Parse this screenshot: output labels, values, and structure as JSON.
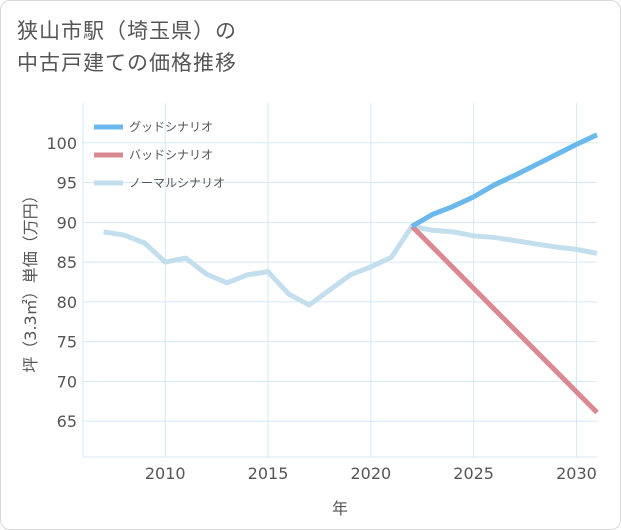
{
  "title_lines": [
    "狭山市駅（埼玉県）の",
    "中古戸建ての価格推移"
  ],
  "colors": {
    "good": "#6ab8ec",
    "bad": "#db8990",
    "normal": "#c3dfee",
    "grid": "#d6e8f4",
    "text": "#555555"
  },
  "chart_data": {
    "type": "line",
    "xlabel": "年",
    "ylabel": "坪（3.3㎡）単価（万円）",
    "xlim": [
      2006,
      2031
    ],
    "ylim": [
      60.5,
      105
    ],
    "xticks": [
      2010,
      2015,
      2020,
      2025,
      2030
    ],
    "yticks": [
      65,
      70,
      75,
      80,
      85,
      90,
      95,
      100
    ],
    "grid": true,
    "legend_position": "top-left",
    "series": [
      {
        "name": "グッドシナリオ",
        "color_key": "good",
        "x": [
          2022,
          2023,
          2024,
          2025,
          2026,
          2027,
          2028,
          2029,
          2030,
          2031
        ],
        "y": [
          89.5,
          91.0,
          92.0,
          93.2,
          94.7,
          95.9,
          97.2,
          98.5,
          99.8,
          101.0
        ]
      },
      {
        "name": "バッドシナリオ",
        "color_key": "bad",
        "x": [
          2022,
          2031
        ],
        "y": [
          89.5,
          66.1
        ]
      },
      {
        "name": "ノーマルシナリオ",
        "color_key": "normal",
        "x": [
          2007,
          2008,
          2009,
          2010,
          2011,
          2012,
          2013,
          2014,
          2015,
          2016,
          2017,
          2018,
          2019,
          2020,
          2021,
          2022,
          2023,
          2024,
          2025,
          2026,
          2027,
          2028,
          2029,
          2030,
          2031
        ],
        "y": [
          88.8,
          88.4,
          87.4,
          85.0,
          85.5,
          83.5,
          82.4,
          83.4,
          83.8,
          81.0,
          79.6,
          81.5,
          83.4,
          84.4,
          85.6,
          89.5,
          89.0,
          88.8,
          88.3,
          88.1,
          87.7,
          87.3,
          86.9,
          86.6,
          86.1
        ]
      }
    ]
  }
}
